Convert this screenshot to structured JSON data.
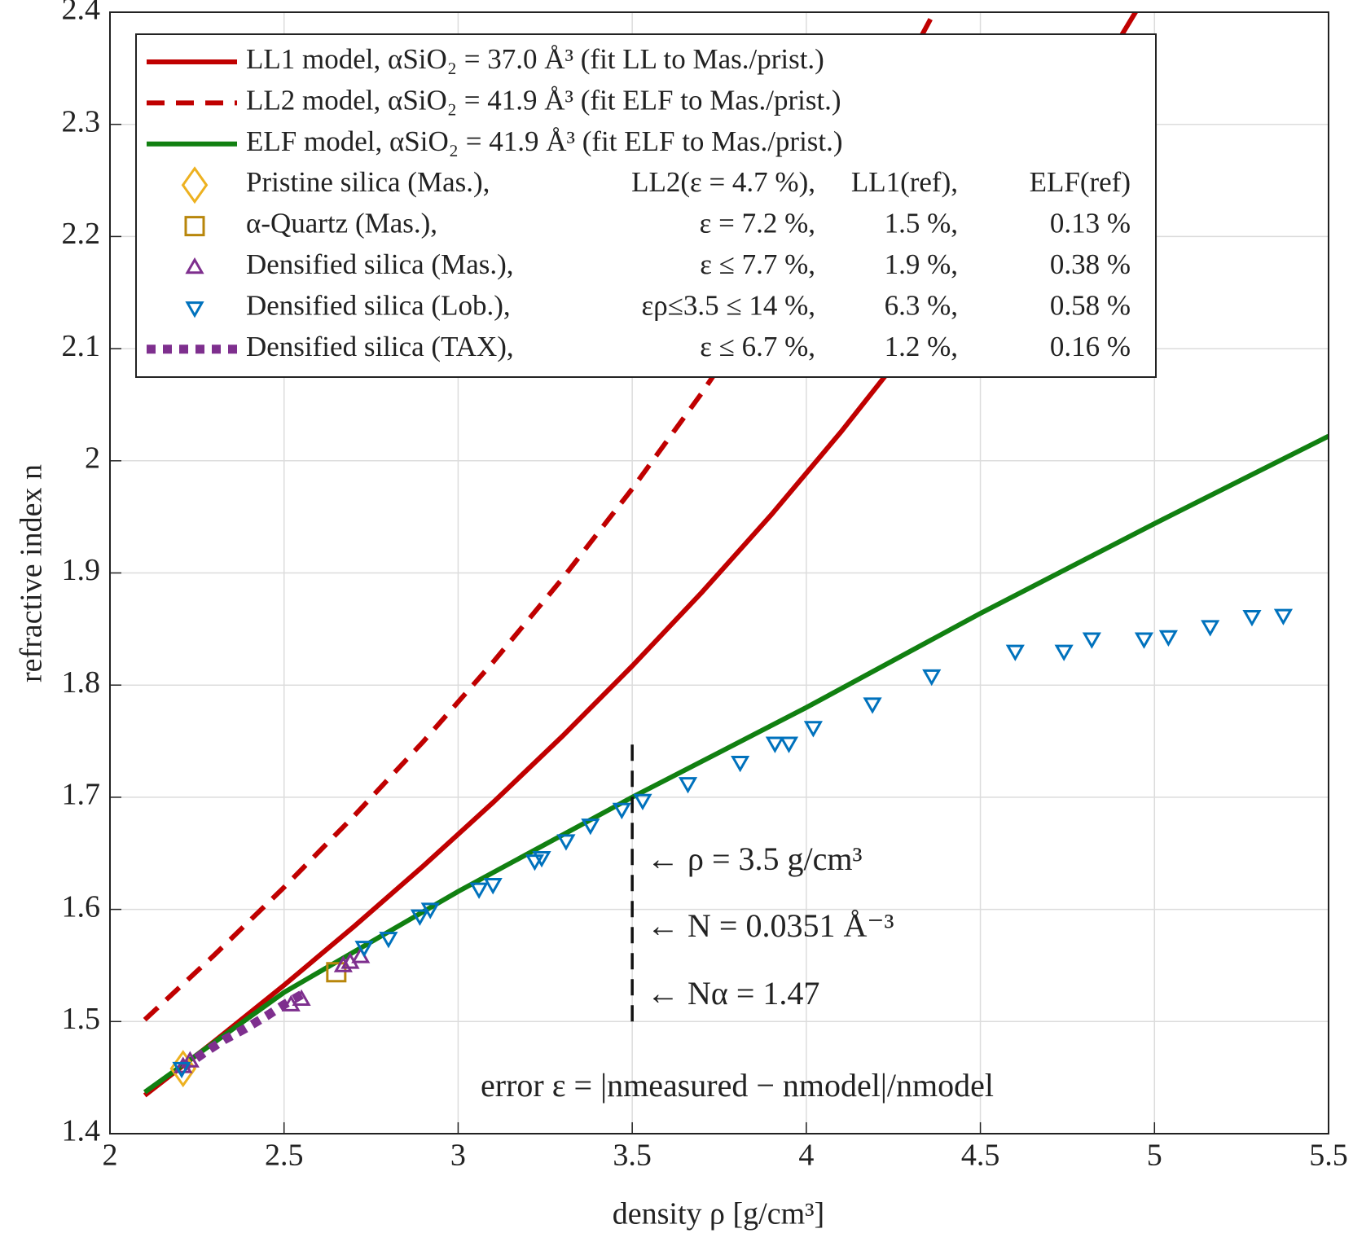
{
  "chart_data": {
    "type": "line",
    "xlabel": "density ρ [g/cm³]",
    "ylabel": "refractive index n",
    "xlim": [
      2,
      5.5
    ],
    "ylim": [
      1.4,
      2.4
    ],
    "xticks": [
      2,
      2.5,
      3,
      3.5,
      4,
      4.5,
      5,
      5.5
    ],
    "yticks": [
      1.4,
      1.5,
      1.6,
      1.7,
      1.8,
      1.9,
      2,
      2.1,
      2.2,
      2.3,
      2.4
    ],
    "grid": true,
    "legend": "upper left",
    "series": [
      {
        "name": "LL1 model, αSiO₂ = 37.0 Å³ (fit LL to Mas./prist.)",
        "color": "#c00000",
        "style": "solid",
        "x": [
          2.1,
          2.3,
          2.5,
          2.7,
          2.9,
          3.1,
          3.3,
          3.5,
          3.7,
          3.9,
          4.1,
          4.3,
          4.5,
          4.7,
          4.9,
          4.95
        ],
        "values": [
          1.4341,
          1.4824,
          1.5324,
          1.5845,
          1.6387,
          1.6953,
          1.7546,
          1.817,
          1.8827,
          1.9521,
          2.0259,
          2.1044,
          2.1885,
          2.2789,
          2.3766,
          2.4023
        ]
      },
      {
        "name": "LL2 model, αSiO₂ = 41.9 Å³ (fit ELF to Mas./prist.)",
        "color": "#c00000",
        "style": "dashed",
        "x": [
          2.1,
          2.3,
          2.5,
          2.7,
          2.9,
          3.1,
          3.3,
          3.5,
          3.7,
          3.9,
          4.1,
          4.3,
          4.38
        ],
        "values": [
          1.5016,
          1.5594,
          1.6197,
          1.683,
          1.7497,
          1.8203,
          1.8952,
          1.975,
          2.0605,
          2.1526,
          2.2523,
          2.3611,
          2.4074
        ]
      },
      {
        "name": "ELF model, αSiO₂ = 41.9 Å³ (fit ELF to Mas./prist.)",
        "color": "#118011",
        "style": "solid",
        "x": [
          2.1,
          2.5,
          3,
          3.5,
          4,
          4.5,
          5,
          5.5
        ],
        "values": [
          1.437,
          1.526,
          1.616,
          1.7,
          1.78,
          1.864,
          1.944,
          2.022
        ]
      },
      {
        "name": "Pristine silica (Mas.),",
        "color": "#edb120",
        "marker": "diamond",
        "legend_errors": [
          "LL2(ε = 4.7 %),",
          "LL1(ref),",
          "ELF(ref)"
        ],
        "x": [
          2.21
        ],
        "values": [
          1.458
        ]
      },
      {
        "name": "α-Quartz (Mas.),",
        "color": "#b8860b",
        "marker": "square",
        "legend_errors": [
          "ε = 7.2 %,",
          "1.5 %,",
          "0.13 %"
        ],
        "x": [
          2.65
        ],
        "values": [
          1.544
        ]
      },
      {
        "name": "Densified silica (Mas.),",
        "color": "#7e2f8e",
        "marker": "triangle",
        "legend_errors": [
          "ε ≤ 7.7 %,",
          "1.9 %,",
          "0.38 %"
        ],
        "x": [
          2.21,
          2.23,
          2.52,
          2.55,
          2.67,
          2.69,
          2.72
        ],
        "values": [
          1.46,
          1.465,
          1.515,
          1.52,
          1.55,
          1.553,
          1.558
        ]
      },
      {
        "name": "Densified silica (Lob.),",
        "color": "#0072bd",
        "marker": "triangle-down",
        "legend_errors": [
          "ερ≤3.5 ≤ 14 %,",
          "6.3 %,",
          "0.58 %"
        ],
        "x": [
          2.206,
          2.73,
          2.8,
          2.89,
          2.92,
          3.06,
          3.1,
          3.22,
          3.24,
          3.31,
          3.38,
          3.47,
          3.53,
          3.66,
          3.81,
          3.91,
          3.95,
          4.02,
          4.19,
          4.36,
          4.6,
          4.74,
          4.82,
          4.97,
          5.04,
          5.16,
          5.28,
          5.37
        ],
        "values": [
          1.458,
          1.566,
          1.574,
          1.594,
          1.6,
          1.618,
          1.622,
          1.643,
          1.646,
          1.661,
          1.675,
          1.689,
          1.697,
          1.712,
          1.731,
          1.748,
          1.748,
          1.762,
          1.783,
          1.808,
          1.83,
          1.83,
          1.841,
          1.841,
          1.843,
          1.852,
          1.861,
          1.862
        ]
      },
      {
        "name": "Densified silica (TAX),",
        "color": "#7e2f8e",
        "style": "dotted",
        "legend_errors": [
          "ε ≤ 6.7 %,",
          "1.2 %,",
          "0.16 %"
        ],
        "x": [
          2.21,
          2.27,
          2.33,
          2.39,
          2.45,
          2.5,
          2.55
        ],
        "values": [
          1.459,
          1.472,
          1.484,
          1.494,
          1.505,
          1.515,
          1.524
        ]
      }
    ],
    "marker_line": {
      "x": 3.5,
      "y": [
        1.5,
        1.75
      ]
    },
    "annotations": [
      "← ρ = 3.5 g/cm³",
      "← N = 0.0351 Å⁻³",
      "← Nα = 1.47",
      "error ε = |nmeasured − nmodel|/nmodel"
    ]
  }
}
